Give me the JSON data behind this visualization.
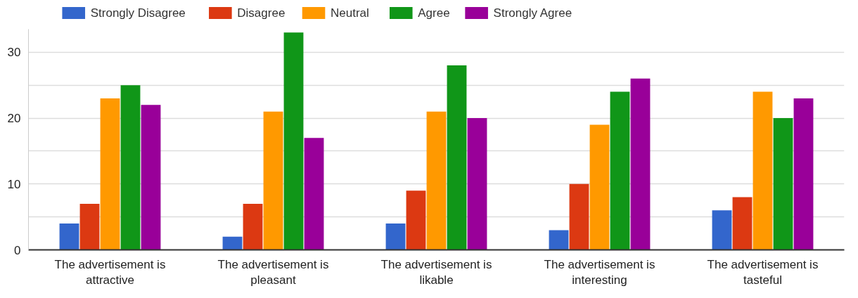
{
  "chart_data": {
    "type": "bar",
    "categories": [
      "The advertisement is attractive",
      "The advertisement is pleasant",
      "The advertisement is likable",
      "The advertisement is interesting",
      "The advertisement is tasteful"
    ],
    "series": [
      {
        "name": "Strongly Disagree",
        "color": "#3366cc",
        "values": [
          4,
          2,
          4,
          3,
          6
        ]
      },
      {
        "name": "Disagree",
        "color": "#dc3912",
        "values": [
          7,
          7,
          9,
          10,
          8
        ]
      },
      {
        "name": "Neutral",
        "color": "#ff9900",
        "values": [
          23,
          21,
          21,
          19,
          24
        ]
      },
      {
        "name": "Agree",
        "color": "#109618",
        "values": [
          25,
          33,
          28,
          24,
          20
        ]
      },
      {
        "name": "Strongly Agree",
        "color": "#990099",
        "values": [
          22,
          17,
          20,
          26,
          23
        ]
      }
    ],
    "ylim": [
      0,
      33.5
    ],
    "yticks": [
      0,
      {
        "value": 5,
        "label": null
      },
      10,
      {
        "value": 15,
        "label": null
      },
      20,
      {
        "value": 25,
        "label": null
      },
      30
    ],
    "grid": "y",
    "legend": "top left"
  }
}
